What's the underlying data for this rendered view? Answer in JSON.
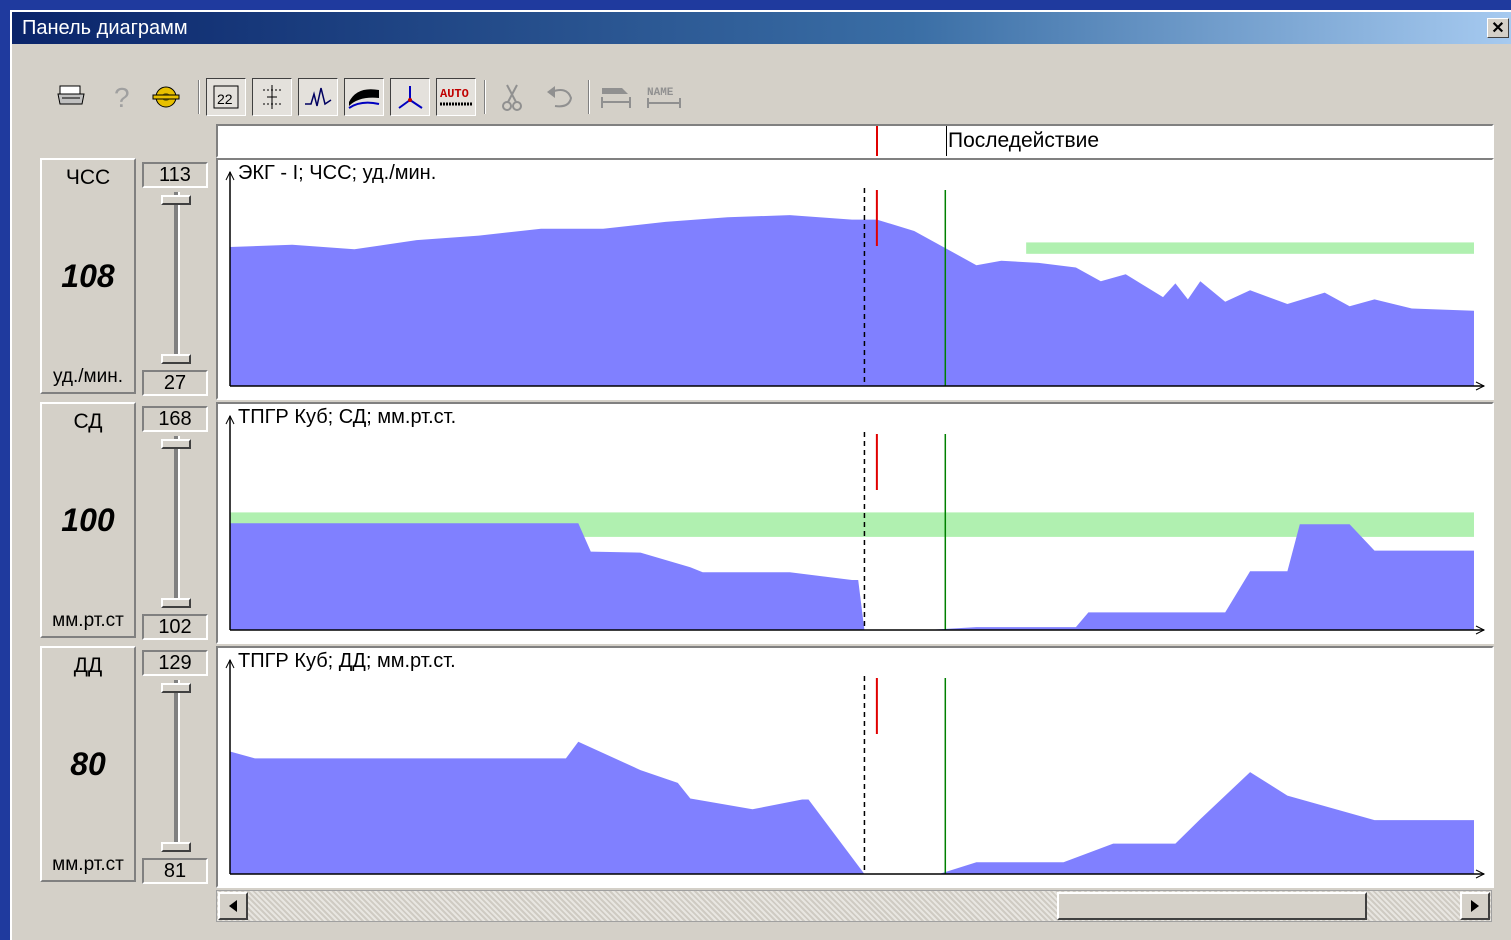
{
  "window": {
    "title": "Панель диаграмм",
    "close_glyph": "✕"
  },
  "toolbar": {
    "buttons": [
      {
        "name": "print-icon"
      },
      {
        "name": "help-icon"
      },
      {
        "name": "settings-icon"
      },
      {
        "name": "table-icon",
        "pressed": true
      },
      {
        "name": "scale-icon",
        "pressed": true
      },
      {
        "name": "waveform-icon",
        "pressed": true
      },
      {
        "name": "trend-icon",
        "pressed": true
      },
      {
        "name": "axis-icon",
        "pressed": true
      },
      {
        "name": "auto-icon",
        "pressed": true
      },
      {
        "name": "cut-icon"
      },
      {
        "name": "undo-icon"
      },
      {
        "name": "mark-icon"
      },
      {
        "name": "name-icon"
      }
    ],
    "auto_label": "AUTO",
    "name_label": "NAME"
  },
  "phase_bar": {
    "label": "Последействие"
  },
  "panels": [
    {
      "name": "ЧСС",
      "value": "108",
      "unit": "уд./мин.",
      "max": "113",
      "min": "27",
      "title": "ЭКГ - I; ЧСС; уд./мин."
    },
    {
      "name": "СД",
      "value": "100",
      "unit": "мм.рт.ст",
      "max": "168",
      "min": "102",
      "title": "ТПГР Куб; СД; мм.рт.ст."
    },
    {
      "name": "ДД",
      "value": "80",
      "unit": "мм.рт.ст",
      "max": "129",
      "min": "81",
      "title": "ТПГР Куб; ДД; мм.рт.ст."
    }
  ],
  "colors": {
    "series_fill": "#8080ff",
    "normal_band": "#b0f0b0",
    "marker_red": "#e00000",
    "marker_green": "#008000"
  },
  "chart_data": [
    {
      "type": "area",
      "title": "ЭКГ - I; ЧСС; уд./мин.",
      "ylabel": "ЧСС",
      "ylim": [
        27,
        113
      ],
      "x": [
        0,
        5,
        10,
        15,
        20,
        25,
        30,
        35,
        40,
        45,
        50,
        52,
        55,
        58,
        60,
        62,
        65,
        68,
        70,
        72,
        75,
        76,
        77,
        78,
        80,
        82,
        85,
        88,
        90,
        92,
        95,
        100
      ],
      "values": [
        88,
        89,
        87,
        91,
        93,
        96,
        96,
        99,
        101,
        102,
        100,
        100,
        95,
        86,
        80,
        82,
        81,
        79,
        73,
        76,
        66,
        72,
        65,
        73,
        64,
        69,
        63,
        68,
        62,
        65,
        61,
        60
      ],
      "normal_band": {
        "x_from": 64,
        "x_to": 100,
        "y_from": 85,
        "y_to": 90
      }
    },
    {
      "type": "area",
      "title": "ТПГР Куб; СД; мм.рт.ст.",
      "ylabel": "СД",
      "ylim": [
        0,
        200
      ],
      "x": [
        0,
        28,
        29,
        33,
        37,
        38,
        45,
        50,
        50.5,
        51,
        55,
        56,
        60,
        68,
        69,
        76,
        75.5,
        76,
        80,
        82,
        84,
        85,
        86,
        90,
        92,
        100
      ],
      "values": [
        109,
        109,
        80,
        79,
        64,
        59,
        59,
        51,
        51,
        0,
        0,
        0,
        3,
        3,
        18,
        18,
        18,
        18,
        18,
        60,
        60,
        60,
        108,
        108,
        81,
        81
      ],
      "normal_band": {
        "x_from": 0,
        "x_to": 100,
        "y_from": 95,
        "y_to": 120
      }
    },
    {
      "type": "area",
      "title": "ТПГР Куб; ДД; мм.рт.ст.",
      "ylabel": "ДД",
      "ylim": [
        0,
        200
      ],
      "x": [
        0,
        2,
        26,
        27,
        28,
        33,
        36,
        37,
        42,
        46,
        46.5,
        51,
        51,
        57,
        60,
        60.2,
        67,
        71,
        76,
        78,
        82,
        85,
        92,
        100
      ],
      "values": [
        125,
        118,
        118,
        118,
        135,
        106,
        93,
        77,
        66,
        76,
        76,
        0,
        0,
        0,
        12,
        12,
        12,
        31,
        31,
        56,
        104,
        80,
        55,
        55
      ]
    }
  ],
  "markers": {
    "dashed_x": 51,
    "red_x": 52,
    "green_x": 57.5
  }
}
